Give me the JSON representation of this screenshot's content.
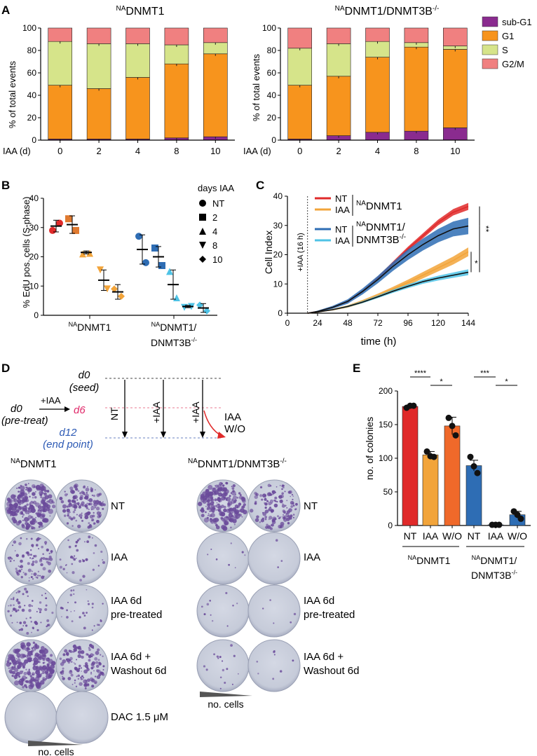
{
  "colors": {
    "subG1": "#8a2b8f",
    "G1": "#f7941d",
    "S": "#d6e48a",
    "G2M": "#f08080",
    "nt_red": "#e02a2a",
    "iaa_orange": "#f2a43a",
    "dk_blue": "#2e6db4",
    "lt_blue": "#4fc3e6",
    "plate_purple": "#6a4a9a",
    "plate_bg": "#cfd4e0"
  },
  "panelA": {
    "letter": "A",
    "y_axis_label": "% of total events",
    "x_axis_label": "IAA (d)",
    "legend": [
      "sub-G1",
      "G1",
      "S",
      "G2/M"
    ],
    "chart_data": [
      {
        "type": "bar",
        "stacked": true,
        "title_sup": "NA",
        "title_main": "DNMT1",
        "title_suffix": "",
        "categories": [
          "0",
          "2",
          "4",
          "8",
          "10"
        ],
        "ylim": [
          0,
          100
        ],
        "yticks": [
          "0",
          "20",
          "40",
          "60",
          "80",
          "100"
        ],
        "series": [
          {
            "name": "sub-G1",
            "values": [
              1,
              1,
              1,
              2,
              3
            ]
          },
          {
            "name": "G1",
            "values": [
              48,
              45,
              55,
              66,
              74
            ]
          },
          {
            "name": "S",
            "values": [
              39,
              40,
              30,
              17,
              10
            ]
          },
          {
            "name": "G2/M",
            "values": [
              12,
              14,
              14,
              15,
              13
            ]
          }
        ]
      },
      {
        "type": "bar",
        "stacked": true,
        "title_sup": "NA",
        "title_main": "DNMT1/DNMT3B",
        "title_suffix": "-/-",
        "categories": [
          "0",
          "2",
          "4",
          "8",
          "10"
        ],
        "ylim": [
          0,
          100
        ],
        "yticks": [
          "0",
          "20",
          "40",
          "60",
          "80",
          "100"
        ],
        "series": [
          {
            "name": "sub-G1",
            "values": [
              1,
              4,
              7,
              8,
              11
            ]
          },
          {
            "name": "G1",
            "values": [
              48,
              53,
              67,
              75,
              70
            ]
          },
          {
            "name": "S",
            "values": [
              33,
              29,
              14,
              4,
              3
            ]
          },
          {
            "name": "G2/M",
            "values": [
              18,
              14,
              12,
              13,
              16
            ]
          }
        ]
      }
    ]
  },
  "panelB": {
    "letter": "B",
    "chart_data": {
      "type": "scatter",
      "ylabel": "% EdU pos. cells (S-phase)",
      "ylim": [
        0,
        40
      ],
      "yticks": [
        "0",
        "10",
        "20",
        "30",
        "40"
      ],
      "groups": [
        {
          "label_sup": "NA",
          "label_main": "DNMT1",
          "label_line2": "",
          "label_sup2": ""
        },
        {
          "label_sup": "NA",
          "label_main": "DNMT1/",
          "label_line2": "DNMT3B",
          "label_sup2": "-/-"
        }
      ],
      "legend_title": "days IAA",
      "legend": [
        "NT",
        "2",
        "4",
        "8",
        "10"
      ],
      "points": [
        {
          "group": 0,
          "day": "NT",
          "mean": 30.5,
          "err": 2,
          "vals": [
            29,
            31.5
          ]
        },
        {
          "group": 0,
          "day": "2",
          "mean": 31,
          "err": 3,
          "vals": [
            33,
            29
          ]
        },
        {
          "group": 0,
          "day": "4",
          "mean": 21.5,
          "err": 0.5,
          "vals": [
            21,
            21.2
          ]
        },
        {
          "group": 0,
          "day": "8",
          "mean": 12,
          "err": 3.5,
          "vals": [
            15.5,
            9
          ]
        },
        {
          "group": 0,
          "day": "10",
          "mean": 8,
          "err": 2.5,
          "vals": [
            9,
            6.5
          ]
        },
        {
          "group": 1,
          "day": "NT",
          "mean": 22.5,
          "err": 5,
          "vals": [
            27,
            18
          ]
        },
        {
          "group": 1,
          "day": "2",
          "mean": 20,
          "err": 3.5,
          "vals": [
            23,
            17
          ]
        },
        {
          "group": 1,
          "day": "4",
          "mean": 10.5,
          "err": 5,
          "vals": [
            15,
            6
          ]
        },
        {
          "group": 1,
          "day": "8",
          "mean": 3,
          "err": 0.4,
          "vals": [
            2.7,
            3
          ]
        },
        {
          "group": 1,
          "day": "10",
          "mean": 2.5,
          "err": 1.5,
          "vals": [
            3.5,
            1.5
          ]
        }
      ]
    }
  },
  "panelC": {
    "letter": "C",
    "chart_data": {
      "type": "line",
      "xlabel": "time (h)",
      "ylabel": "Cell Index",
      "xlim": [
        0,
        144
      ],
      "ylim": [
        0,
        40
      ],
      "xticks": [
        "0",
        "24",
        "48",
        "72",
        "96",
        "120",
        "144"
      ],
      "yticks": [
        "0",
        "10",
        "20",
        "30",
        "40"
      ],
      "annotation": "+IAA (16 h)",
      "annotation_x": 16,
      "legend": [
        {
          "label": "NT"
        },
        {
          "label": "IAA"
        },
        {
          "label": "NT"
        },
        {
          "label": "IAA"
        }
      ],
      "legend_group1_sup": "NA",
      "legend_group1_main": "DNMT1",
      "legend_group2_sup": "NA",
      "legend_group2_main": "DNMT1/",
      "legend_group2_line2": "DNMT3B",
      "legend_group2_sup2": "-/-",
      "sig": [
        "*",
        "**"
      ],
      "series": [
        {
          "name": "NT NADNMT1",
          "x": [
            16,
            24,
            36,
            48,
            60,
            72,
            84,
            96,
            108,
            120,
            132,
            144
          ],
          "y": [
            0,
            0.6,
            2,
            4,
            7.5,
            12,
            17,
            22,
            26.5,
            31,
            34.5,
            36.5
          ],
          "band": 1.2
        },
        {
          "name": "IAA NADNMT1",
          "x": [
            16,
            24,
            36,
            48,
            60,
            72,
            84,
            96,
            108,
            120,
            132,
            144
          ],
          "y": [
            0,
            0.4,
            1.2,
            2.3,
            4,
            6,
            8.2,
            10.5,
            13,
            15.5,
            18,
            21
          ],
          "band": 1.5
        },
        {
          "name": "NT NADNMT1/DNMT3B-/-",
          "x": [
            16,
            24,
            36,
            48,
            60,
            72,
            84,
            96,
            108,
            120,
            132,
            144
          ],
          "y": [
            0,
            0.6,
            2,
            4,
            7.5,
            11.5,
            16,
            20,
            23.5,
            26.5,
            28.8,
            29.8
          ],
          "band": 2.8
        },
        {
          "name": "IAA NADNMT1/DNMT3B-/-",
          "x": [
            16,
            24,
            36,
            48,
            60,
            72,
            84,
            96,
            108,
            120,
            132,
            144
          ],
          "y": [
            0,
            0.4,
            1.2,
            2.3,
            3.8,
            5.6,
            7.5,
            9.2,
            10.8,
            12,
            13,
            14
          ],
          "band": 1
        }
      ]
    }
  },
  "panelD": {
    "letter": "D",
    "schema": {
      "d0_seed_l1": "d0",
      "d0_seed_l2": "(seed)",
      "d0_pre_l1": "d0",
      "d0_pre_l2": "(pre-treat)",
      "plus_iaa": "+IAA",
      "d6": "d6",
      "d12_l1": "d12",
      "d12_l2": "(end point)",
      "arrow_nt": "NT",
      "arrow_iaa": "+IAA",
      "arrow_iaa2": "+IAA",
      "iaa": "IAA",
      "wo": "W/O"
    },
    "left_title_sup": "NA",
    "left_title_main": "DNMT1",
    "right_title_sup": "NA",
    "right_title_main": "DNMT1/DNMT3B",
    "right_title_suffix": "-/-",
    "rows": [
      {
        "line1": "NT",
        "line2": ""
      },
      {
        "line1": "IAA",
        "line2": ""
      },
      {
        "line1": "IAA 6d",
        "line2": "pre-treated"
      },
      {
        "line1": "IAA 6d +",
        "line2": "Washout 6d"
      },
      {
        "line1": "DAC 1.5 μM",
        "line2": ""
      }
    ],
    "density_left": [
      [
        0.85,
        0.55
      ],
      [
        0.35,
        0.15
      ],
      [
        0.25,
        0.12
      ],
      [
        0.8,
        0.5
      ],
      [
        0,
        0
      ]
    ],
    "density_right": [
      [
        0.8,
        0.5
      ],
      [
        0.03,
        0.01
      ],
      [
        0.04,
        0.02
      ],
      [
        0.06,
        0.03
      ]
    ],
    "cells_label": "no. cells"
  },
  "panelE": {
    "letter": "E",
    "chart_data": {
      "type": "bar",
      "ylabel": "no. of colonies",
      "ylim": [
        0,
        200
      ],
      "yticks": [
        "0",
        "50",
        "100",
        "150",
        "200"
      ],
      "categories": [
        "NT",
        "IAA",
        "W/O",
        "NT",
        "IAA",
        "W/O"
      ],
      "values": [
        177,
        105,
        148,
        89,
        1,
        16
      ],
      "errors": [
        2,
        5,
        13,
        8,
        0.5,
        5
      ],
      "points": [
        [
          175,
          178,
          178
        ],
        [
          110,
          103,
          102
        ],
        [
          160,
          148,
          134
        ],
        [
          102,
          88,
          78
        ],
        [
          1,
          1,
          1
        ],
        [
          21,
          16,
          10
        ]
      ],
      "group1_sup": "NA",
      "group1_main": "DNMT1",
      "group2_sup": "NA",
      "group2_main": "DNMT1/",
      "group2_line2": "DNMT3B",
      "group2_sup2": "-/-",
      "sig": [
        "****",
        "*",
        "***",
        "*"
      ]
    }
  }
}
